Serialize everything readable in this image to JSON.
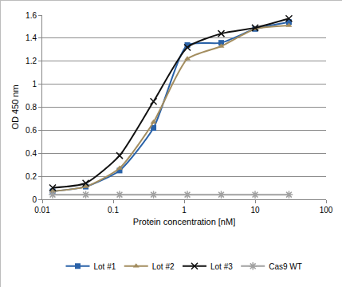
{
  "chart_data": {
    "type": "line",
    "x_label": "Protein concentration [nM]",
    "y_label": "OD 450 nm",
    "x": [
      0.014,
      0.041,
      0.123,
      0.37,
      1.11,
      3.33,
      10,
      30
    ],
    "series": [
      {
        "name": "Lot #1",
        "color": "#2a62a8",
        "marker": "square",
        "values": [
          0.07,
          0.11,
          0.25,
          0.62,
          1.34,
          1.36,
          1.48,
          1.54
        ]
      },
      {
        "name": "Lot #2",
        "color": "#a38d5f",
        "marker": "triangle",
        "values": [
          0.07,
          0.11,
          0.27,
          0.67,
          1.22,
          1.33,
          1.48,
          1.51
        ]
      },
      {
        "name": "Lot #3",
        "color": "#111111",
        "marker": "x",
        "values": [
          0.1,
          0.14,
          0.38,
          0.85,
          1.32,
          1.44,
          1.49,
          1.57
        ]
      },
      {
        "name": "Cas9 WT",
        "color": "#a0a0a0",
        "marker": "asterisk",
        "values": [
          0.04,
          0.04,
          0.04,
          0.04,
          0.04,
          0.04,
          0.04,
          0.04
        ]
      }
    ],
    "log": "x",
    "xlim": [
      0.01,
      100
    ],
    "xticks": [
      0.01,
      0.1,
      1,
      10,
      100
    ],
    "ylim": [
      0,
      1.6
    ],
    "yticks": [
      0,
      0.2,
      0.4,
      0.6,
      0.8,
      1,
      1.2,
      1.4,
      1.6
    ],
    "grid": true,
    "legend": "bottom"
  }
}
